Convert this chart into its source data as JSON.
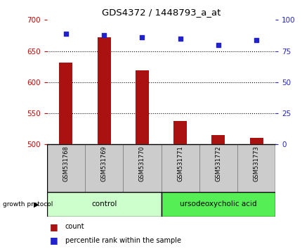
{
  "title": "GDS4372 / 1448793_a_at",
  "categories": [
    "GSM531768",
    "GSM531769",
    "GSM531770",
    "GSM531771",
    "GSM531772",
    "GSM531773"
  ],
  "bar_values": [
    632,
    672,
    619,
    538,
    515,
    511
  ],
  "percentile_values": [
    89,
    88,
    86,
    85,
    80,
    84
  ],
  "ylim_left": [
    500,
    700
  ],
  "ylim_right": [
    0,
    100
  ],
  "yticks_left": [
    500,
    550,
    600,
    650,
    700
  ],
  "yticks_right": [
    0,
    25,
    50,
    75,
    100
  ],
  "bar_color": "#aa1111",
  "dot_color": "#2222cc",
  "bar_bottom": 500,
  "grid_values": [
    550,
    600,
    650
  ],
  "groups": [
    {
      "label": "control",
      "indices": [
        0,
        1,
        2
      ],
      "color": "#ccffcc"
    },
    {
      "label": "ursodeoxycholic acid",
      "indices": [
        3,
        4,
        5
      ],
      "color": "#55ee55"
    }
  ],
  "group_protocol_label": "growth protocol",
  "legend_count_label": "count",
  "legend_percentile_label": "percentile rank within the sample",
  "tick_label_color_left": "#cc0000",
  "tick_label_color_right": "#2222cc",
  "bg_color": "#ffffff",
  "xlabel_bg_color": "#cccccc",
  "bar_width": 0.35
}
